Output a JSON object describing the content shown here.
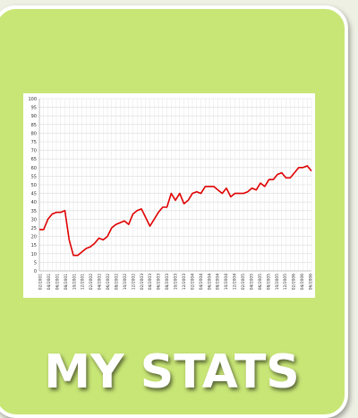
{
  "tile": {
    "label": "MY STATS"
  },
  "chart_data": {
    "type": "line",
    "ylim": [
      0,
      100
    ],
    "y_ticks": [
      0,
      5,
      10,
      15,
      20,
      25,
      30,
      35,
      40,
      45,
      50,
      55,
      60,
      65,
      70,
      75,
      80,
      85,
      90,
      95,
      100
    ],
    "x_tick_labels": [
      "02/2001",
      "04/2001",
      "06/2001",
      "08/2001",
      "10/2001",
      "12/2001",
      "02/2002",
      "04/2002",
      "06/2002",
      "08/2002",
      "10/2002",
      "12/2002",
      "02/2003",
      "04/2003",
      "06/2003",
      "08/2003",
      "10/2003",
      "12/2003",
      "02/2004",
      "04/2004",
      "06/2004",
      "08/2004",
      "10/2004",
      "12/2004",
      "02/2005",
      "04/2005",
      "06/2005",
      "08/2005",
      "10/2005",
      "12/2005",
      "02/2006",
      "04/2006",
      "06/2006"
    ],
    "grid": true,
    "line_color": "#e00000",
    "series": [
      {
        "values": [
          24,
          24,
          30,
          33,
          34,
          34,
          35,
          18,
          9,
          9,
          11,
          13,
          14,
          16,
          19,
          18,
          20,
          25,
          27,
          28,
          29,
          27,
          33,
          35,
          36,
          31,
          26,
          30,
          34,
          37,
          37,
          45,
          41,
          45,
          39,
          41,
          45,
          46,
          45,
          49,
          49,
          49,
          47,
          45,
          48,
          43,
          45,
          45,
          45,
          46,
          48,
          47,
          51,
          49,
          53,
          53,
          56,
          57,
          54,
          54,
          57,
          60,
          60,
          61,
          58
        ]
      }
    ]
  }
}
